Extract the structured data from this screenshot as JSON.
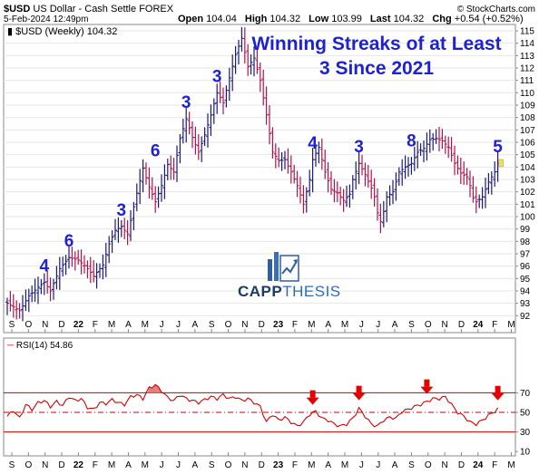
{
  "header": {
    "symbol": "$USD",
    "name": "US Dollar - Cash Settle",
    "exchange": "FOREX",
    "date": "5-Feb-2024 12:49pm",
    "open_label": "Open",
    "open": "104.04",
    "high_label": "High",
    "high": "104.32",
    "low_label": "Low",
    "low": "103.99",
    "last_label": "Last",
    "last": "104.32",
    "chg_label": "Chg",
    "chg": "+0.54 (+0.52%)",
    "copyright": "© StockCharts.com",
    "legend": "$USD (Weekly) 104.32"
  },
  "logo": {
    "text_a": "CAPP",
    "text_b": "THESIS"
  },
  "chart_data": [
    {
      "type": "bar",
      "title": "Winning Streaks of at Least 3 Since 2021",
      "series_name": "$USD (Weekly)",
      "ylim": [
        91,
        115
      ],
      "y_ticks": [
        92,
        93,
        94,
        95,
        96,
        97,
        98,
        99,
        100,
        101,
        102,
        103,
        104,
        105,
        106,
        107,
        108,
        109,
        110,
        111,
        112,
        113,
        114,
        115
      ],
      "x_ticks": [
        "S",
        "O",
        "N",
        "D",
        "22",
        "F",
        "M",
        "A",
        "M",
        "J",
        "J",
        "A",
        "S",
        "O",
        "N",
        "D",
        "23",
        "F",
        "M",
        "A",
        "M",
        "J",
        "J",
        "A",
        "S",
        "O",
        "N",
        "D",
        "24",
        "F",
        "M"
      ],
      "close_path": [
        [
          0,
          93.0
        ],
        [
          4,
          92.4
        ],
        [
          7,
          93.6
        ],
        [
          10,
          94.3
        ],
        [
          12,
          94.7
        ],
        [
          14,
          94.0
        ],
        [
          17,
          95.8
        ],
        [
          20,
          96.7
        ],
        [
          23,
          96.5
        ],
        [
          26,
          95.8
        ],
        [
          28,
          95.2
        ],
        [
          31,
          96.1
        ],
        [
          33,
          97.8
        ],
        [
          35,
          98.9
        ],
        [
          37,
          99.2
        ],
        [
          39,
          98.6
        ],
        [
          42,
          101.9
        ],
        [
          44,
          103.9
        ],
        [
          46,
          102.4
        ],
        [
          48,
          101.2
        ],
        [
          50,
          102.5
        ],
        [
          52,
          104.2
        ],
        [
          54,
          103.6
        ],
        [
          56,
          106.3
        ],
        [
          58,
          107.9
        ],
        [
          60,
          106.4
        ],
        [
          62,
          105.2
        ],
        [
          64,
          106.6
        ],
        [
          66,
          108.2
        ],
        [
          68,
          110.0
        ],
        [
          70,
          109.2
        ],
        [
          72,
          111.2
        ],
        [
          74,
          113.1
        ],
        [
          76,
          114.4
        ],
        [
          78,
          112.1
        ],
        [
          80,
          112.8
        ],
        [
          82,
          111.0
        ],
        [
          84,
          108.2
        ],
        [
          86,
          105.2
        ],
        [
          88,
          104.5
        ],
        [
          90,
          104.6
        ],
        [
          92,
          103.6
        ],
        [
          94,
          102.5
        ],
        [
          96,
          101.0
        ],
        [
          98,
          103.0
        ],
        [
          99,
          104.6
        ],
        [
          101,
          105.6
        ],
        [
          103,
          103.6
        ],
        [
          105,
          102.2
        ],
        [
          107,
          101.9
        ],
        [
          109,
          101.3
        ],
        [
          111,
          101.8
        ],
        [
          112,
          103.0
        ],
        [
          114,
          104.3
        ],
        [
          116,
          103.4
        ],
        [
          118,
          102.3
        ],
        [
          119,
          101.6
        ],
        [
          120,
          100.3
        ],
        [
          121,
          99.6
        ],
        [
          122,
          100.4
        ],
        [
          123,
          101.6
        ],
        [
          125,
          102.0
        ],
        [
          127,
          103.6
        ],
        [
          129,
          104.0
        ],
        [
          131,
          104.3
        ],
        [
          133,
          105.2
        ],
        [
          135,
          105.5
        ],
        [
          137,
          106.2
        ],
        [
          139,
          106.3
        ],
        [
          141,
          106.1
        ],
        [
          143,
          105.6
        ],
        [
          145,
          104.3
        ],
        [
          147,
          103.5
        ],
        [
          149,
          103.2
        ],
        [
          150,
          102.5
        ],
        [
          151,
          101.5
        ],
        [
          152,
          101.2
        ],
        [
          154,
          101.6
        ],
        [
          156,
          102.8
        ],
        [
          158,
          103.6
        ],
        [
          159,
          104.32
        ]
      ],
      "streaks": [
        {
          "label": "4",
          "x": 12,
          "y": 94.7
        },
        {
          "label": "6",
          "x": 20,
          "y": 96.7
        },
        {
          "label": "3",
          "x": 37,
          "y": 99.2
        },
        {
          "label": "6",
          "x": 48,
          "y": 104.0
        },
        {
          "label": "3",
          "x": 58,
          "y": 107.9
        },
        {
          "label": "3",
          "x": 68,
          "y": 110.0
        },
        {
          "label": "4",
          "x": 99,
          "y": 104.6
        },
        {
          "label": "3",
          "x": 114,
          "y": 104.3
        },
        {
          "label": "8",
          "x": 131,
          "y": 104.8
        },
        {
          "label": "5",
          "x": 159,
          "y": 104.32
        }
      ]
    },
    {
      "type": "line",
      "series_name": "RSI(14)",
      "current_value": "54.86",
      "ylim": [
        0,
        85
      ],
      "y_ticks": [
        10,
        30,
        50,
        70
      ],
      "ref_lines": [
        30,
        50,
        70
      ],
      "x_ticks": [
        "S",
        "O",
        "N",
        "D",
        "22",
        "F",
        "M",
        "A",
        "M",
        "J",
        "J",
        "A",
        "S",
        "O",
        "N",
        "D",
        "23",
        "F",
        "M",
        "A",
        "M",
        "J",
        "J",
        "A",
        "S",
        "O",
        "N",
        "D",
        "24",
        "F",
        "M"
      ],
      "points": [
        [
          0,
          46
        ],
        [
          2,
          52
        ],
        [
          4,
          44
        ],
        [
          6,
          58
        ],
        [
          8,
          53
        ],
        [
          10,
          60
        ],
        [
          12,
          62
        ],
        [
          14,
          56
        ],
        [
          16,
          61
        ],
        [
          18,
          57
        ],
        [
          20,
          66
        ],
        [
          22,
          62
        ],
        [
          24,
          64
        ],
        [
          26,
          55
        ],
        [
          28,
          53
        ],
        [
          30,
          60
        ],
        [
          32,
          59
        ],
        [
          34,
          63
        ],
        [
          36,
          60
        ],
        [
          38,
          58
        ],
        [
          40,
          66
        ],
        [
          42,
          68
        ],
        [
          44,
          64
        ],
        [
          46,
          75
        ],
        [
          48,
          78
        ],
        [
          50,
          72
        ],
        [
          52,
          65
        ],
        [
          54,
          62
        ],
        [
          56,
          68
        ],
        [
          58,
          64
        ],
        [
          60,
          62
        ],
        [
          62,
          60
        ],
        [
          64,
          63
        ],
        [
          66,
          66
        ],
        [
          68,
          64
        ],
        [
          70,
          68
        ],
        [
          72,
          64
        ],
        [
          74,
          66
        ],
        [
          76,
          62
        ],
        [
          78,
          64
        ],
        [
          80,
          60
        ],
        [
          82,
          56
        ],
        [
          84,
          40
        ],
        [
          86,
          48
        ],
        [
          88,
          42
        ],
        [
          90,
          45
        ],
        [
          92,
          40
        ],
        [
          94,
          36
        ],
        [
          96,
          40
        ],
        [
          98,
          48
        ],
        [
          100,
          51
        ],
        [
          102,
          44
        ],
        [
          104,
          42
        ],
        [
          106,
          38
        ],
        [
          108,
          36
        ],
        [
          110,
          38
        ],
        [
          112,
          44
        ],
        [
          114,
          54
        ],
        [
          116,
          46
        ],
        [
          118,
          38
        ],
        [
          120,
          36
        ],
        [
          122,
          42
        ],
        [
          124,
          45
        ],
        [
          126,
          44
        ],
        [
          128,
          51
        ],
        [
          130,
          53
        ],
        [
          132,
          56
        ],
        [
          134,
          58
        ],
        [
          136,
          61
        ],
        [
          138,
          64
        ],
        [
          140,
          64
        ],
        [
          142,
          66
        ],
        [
          144,
          58
        ],
        [
          146,
          50
        ],
        [
          148,
          46
        ],
        [
          150,
          40
        ],
        [
          152,
          38
        ],
        [
          154,
          42
        ],
        [
          156,
          47
        ],
        [
          158,
          51
        ],
        [
          159,
          54.86
        ]
      ],
      "arrows_x": [
        99,
        114,
        136,
        159
      ]
    }
  ]
}
